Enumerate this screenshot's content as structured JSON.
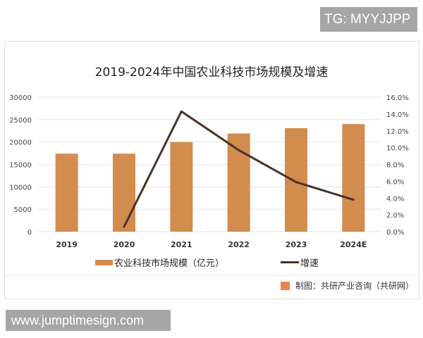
{
  "badge_top": "TG: MYYJJPP",
  "badge_bottom": "www.jumptimesign.com",
  "source": "制图：共研产业咨询（共研网）",
  "colors": {
    "bar": "#d28c4e",
    "line": "#4a3328",
    "grid": "#e3e3e3"
  },
  "chart_data": {
    "type": "bar+line",
    "title": "2019-2024年中国农业科技市场规模及增速",
    "categories": [
      "2019",
      "2020",
      "2021",
      "2022",
      "2023",
      "2024E"
    ],
    "series": [
      {
        "name": "农业科技市场规模（亿元）",
        "type": "bar",
        "axis": "left",
        "values": [
          17400,
          17400,
          20000,
          21900,
          23100,
          24000
        ]
      },
      {
        "name": "增速",
        "type": "line",
        "axis": "right",
        "values": [
          null,
          0.6,
          14.3,
          9.7,
          5.9,
          3.8
        ]
      }
    ],
    "left_axis": {
      "range": [
        0,
        30000
      ],
      "ticks": [
        "0",
        "5000",
        "10000",
        "15000",
        "20000",
        "25000",
        "30000"
      ]
    },
    "right_axis": {
      "range": [
        0,
        16
      ],
      "unit": "%",
      "ticks": [
        "0.0%",
        "2.0%",
        "4.0%",
        "6.0%",
        "8.0%",
        "10.0%",
        "12.0%",
        "14.0%",
        "16.0%"
      ]
    },
    "grid": true,
    "legend": "bottom"
  }
}
